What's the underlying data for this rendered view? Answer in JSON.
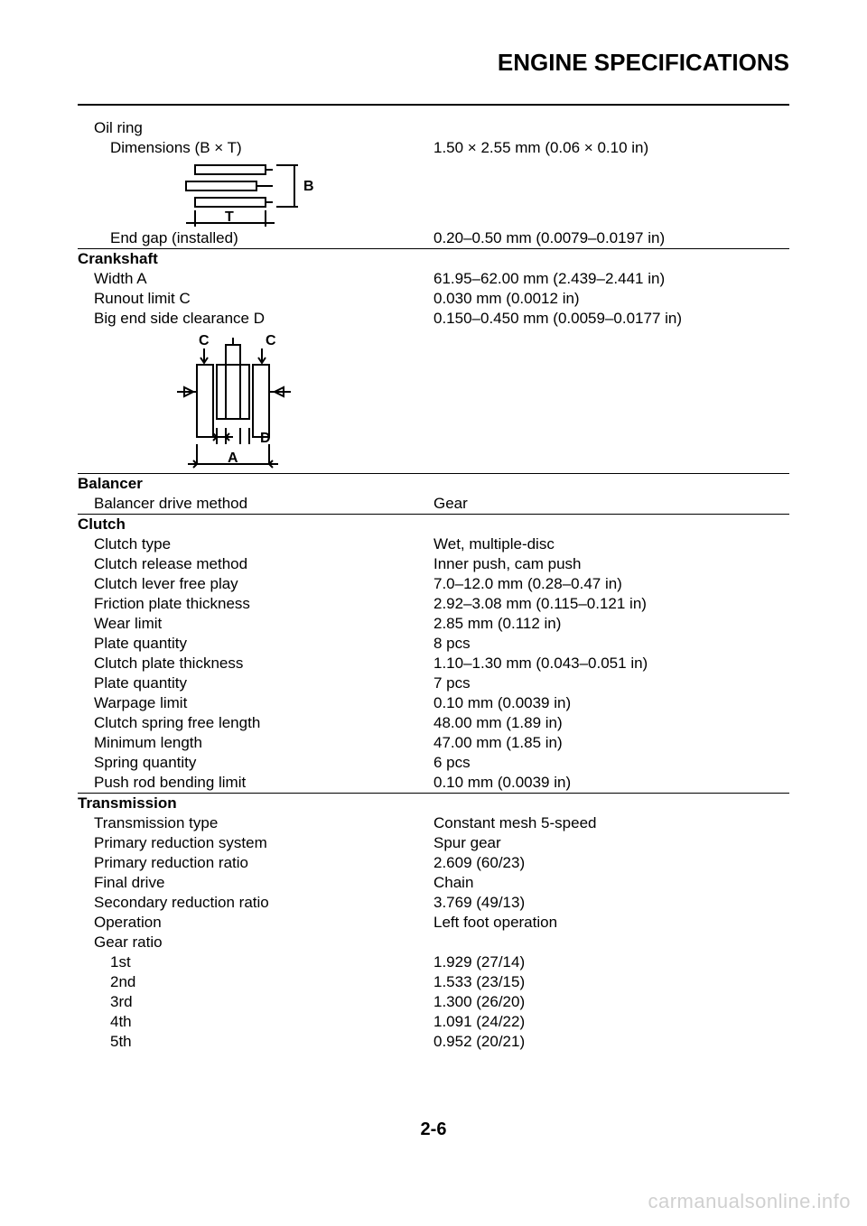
{
  "title": "ENGINE SPECIFICATIONS",
  "page_number": "2-6",
  "watermark": "carmanualsonline.info",
  "colors": {
    "text": "#000000",
    "background": "#ffffff",
    "rule": "#000000",
    "watermark": "#d0d0d0"
  },
  "typography": {
    "title_fontsize": 26,
    "title_weight": "bold",
    "body_fontsize": 17,
    "line_height": 22,
    "page_number_fontsize": 20,
    "watermark_fontsize": 22
  },
  "oil_ring": {
    "heading": "Oil ring",
    "dimensions_label": "Dimensions (B × T)",
    "dimensions_value": "1.50 × 2.55 mm (0.06 × 0.10 in)",
    "end_gap_label": "End gap (installed)",
    "end_gap_value": "0.20–0.50 mm (0.0079–0.0197 in)",
    "diagram_label_B": "B",
    "diagram_label_T": "T"
  },
  "crankshaft": {
    "heading": "Crankshaft",
    "width_label": "Width A",
    "width_value": "61.95–62.00 mm (2.439–2.441 in)",
    "runout_label": "Runout limit C",
    "runout_value": "0.030 mm (0.0012 in)",
    "bigend_label": "Big end side clearance D",
    "bigend_value": "0.150–0.450 mm (0.0059–0.0177 in)",
    "diagram_label_A": "A",
    "diagram_label_C": "C",
    "diagram_label_D": "D"
  },
  "balancer": {
    "heading": "Balancer",
    "drive_label": "Balancer drive method",
    "drive_value": "Gear"
  },
  "clutch": {
    "heading": "Clutch",
    "items": [
      {
        "label": "Clutch type",
        "value": "Wet, multiple-disc"
      },
      {
        "label": "Clutch release method",
        "value": "Inner push, cam push"
      },
      {
        "label": "Clutch lever free play",
        "value": "7.0–12.0 mm (0.28–0.47 in)"
      },
      {
        "label": "Friction plate thickness",
        "value": "2.92–3.08 mm (0.115–0.121 in)"
      },
      {
        "label": "Wear limit",
        "value": "2.85 mm (0.112 in)"
      },
      {
        "label": "Plate quantity",
        "value": "8 pcs"
      },
      {
        "label": "Clutch plate thickness",
        "value": "1.10–1.30 mm (0.043–0.051 in)"
      },
      {
        "label": "Plate quantity",
        "value": "7 pcs"
      },
      {
        "label": "Warpage limit",
        "value": "0.10 mm (0.0039 in)"
      },
      {
        "label": "Clutch spring free length",
        "value": "48.00 mm (1.89 in)"
      },
      {
        "label": "Minimum length",
        "value": "47.00 mm (1.85 in)"
      },
      {
        "label": "Spring quantity",
        "value": "6 pcs"
      },
      {
        "label": "Push rod bending limit",
        "value": "0.10 mm (0.0039 in)"
      }
    ]
  },
  "transmission": {
    "heading": "Transmission",
    "type_label": "Transmission type",
    "type_value": "Constant mesh 5-speed",
    "primary_sys_label": "Primary reduction system",
    "primary_sys_value": "Spur gear",
    "primary_ratio_label": "Primary reduction ratio",
    "primary_ratio_value": "2.609 (60/23)",
    "final_drive_label": "Final drive",
    "final_drive_value": "Chain",
    "secondary_ratio_label": "Secondary reduction ratio",
    "secondary_ratio_value": "3.769 (49/13)",
    "operation_label": "Operation",
    "operation_value": "Left foot operation",
    "gear_ratio_label": "Gear ratio",
    "gears": [
      {
        "label": "1st",
        "value": "1.929 (27/14)"
      },
      {
        "label": "2nd",
        "value": "1.533 (23/15)"
      },
      {
        "label": "3rd",
        "value": "1.300 (26/20)"
      },
      {
        "label": "4th",
        "value": "1.091 (24/22)"
      },
      {
        "label": "5th",
        "value": "0.952 (20/21)"
      }
    ]
  }
}
